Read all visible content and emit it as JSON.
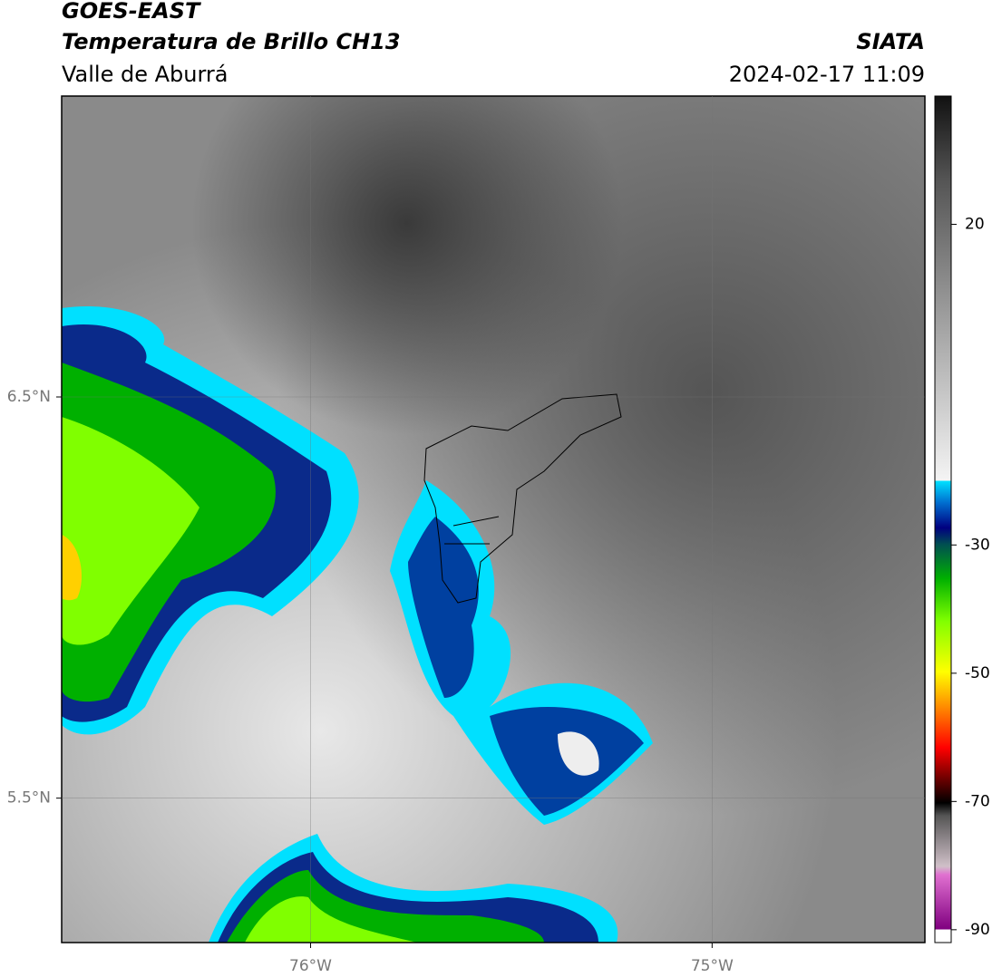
{
  "header": {
    "title": "GOES-EAST",
    "subtitle": "Temperatura de Brillo CH13",
    "region": "Valle de Aburrá",
    "source": "SIATA",
    "datetime": "2024-02-17 11:09"
  },
  "map": {
    "xlim": [
      -76.62,
      -74.47
    ],
    "ylim": [
      5.14,
      7.25
    ],
    "xticks": [
      {
        "value": -76,
        "label": "76°W"
      },
      {
        "value": -75,
        "label": "75°W"
      }
    ],
    "yticks": [
      {
        "value": 6.5,
        "label": "6.5°N"
      },
      {
        "value": 5.5,
        "label": "5.5°N"
      }
    ],
    "grid": true
  },
  "colorbar": {
    "clim": [
      -92,
      40
    ],
    "ticks": [
      20,
      -30,
      -50,
      -70,
      -90
    ]
  }
}
